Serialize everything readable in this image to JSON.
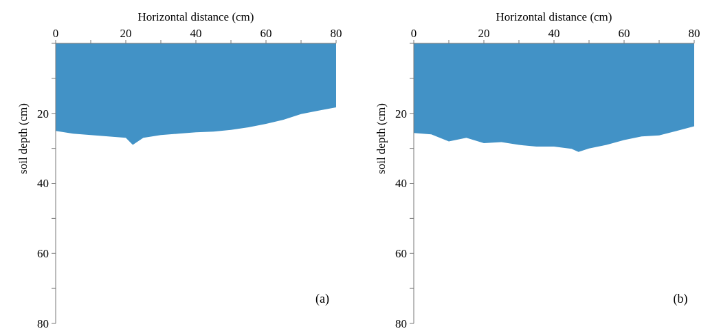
{
  "chart_data": [
    {
      "type": "area",
      "xlabel": "Horizontal distance (cm)",
      "ylabel": "soil depth (cm)",
      "annotations": [
        "(a)"
      ],
      "x": [
        0,
        5,
        10,
        15,
        20,
        22,
        25,
        30,
        35,
        40,
        45,
        50,
        55,
        60,
        65,
        70,
        75,
        80
      ],
      "series": [
        {
          "color": "#4292c6",
          "values": [
            25,
            25.8,
            26.2,
            26.6,
            27,
            29,
            27,
            26.2,
            25.8,
            25.4,
            25.2,
            24.7,
            24,
            23,
            21.8,
            20.2,
            19.2,
            18.3
          ]
        }
      ],
      "xlim": [
        0,
        80
      ],
      "xticks": [
        0,
        {
          "value": 10,
          "label": null
        },
        20,
        {
          "value": 30,
          "label": null
        },
        40,
        {
          "value": 50,
          "label": null
        },
        60,
        {
          "value": 70,
          "label": null
        },
        80
      ],
      "ylim": [
        80,
        0
      ],
      "yticks": [
        {
          "value": 0,
          "label": null
        },
        {
          "value": 10,
          "label": null
        },
        20,
        {
          "value": 30,
          "label": null
        },
        40,
        {
          "value": 50,
          "label": null
        },
        60,
        {
          "value": 70,
          "label": null
        },
        80
      ]
    },
    {
      "type": "area",
      "xlabel": "Horizontal distance (cm)",
      "ylabel": "soil depth (cm)",
      "annotations": [
        "(b)"
      ],
      "x": [
        0,
        5,
        10,
        15,
        20,
        25,
        30,
        35,
        40,
        45,
        47,
        50,
        55,
        60,
        65,
        70,
        75,
        80
      ],
      "series": [
        {
          "color": "#4292c6",
          "values": [
            25.6,
            26,
            28,
            27,
            28.5,
            28.2,
            29,
            29.5,
            29.5,
            30.1,
            31,
            30,
            29,
            27.6,
            26.6,
            26.3,
            25,
            23.7
          ]
        }
      ],
      "xlim": [
        0,
        80
      ],
      "xticks": [
        0,
        {
          "value": 10,
          "label": null
        },
        20,
        {
          "value": 30,
          "label": null
        },
        40,
        {
          "value": 50,
          "label": null
        },
        60,
        {
          "value": 70,
          "label": null
        },
        80
      ],
      "ylim": [
        80,
        0
      ],
      "yticks": [
        {
          "value": 0,
          "label": null
        },
        {
          "value": 10,
          "label": null
        },
        20,
        {
          "value": 30,
          "label": null
        },
        40,
        {
          "value": 50,
          "label": null
        },
        60,
        {
          "value": 70,
          "label": null
        },
        80
      ]
    }
  ]
}
